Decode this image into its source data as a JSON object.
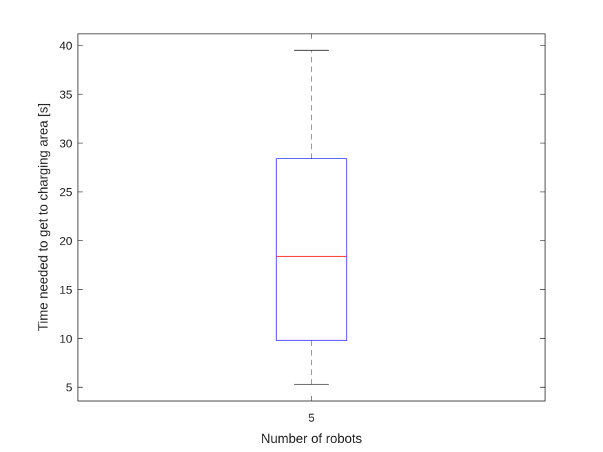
{
  "chart_data": {
    "type": "boxplot",
    "title": "",
    "xlabel": "Number of robots",
    "ylabel": "Time needed to get to charging area [s]",
    "categories": [
      "5"
    ],
    "boxes": [
      {
        "category": "5",
        "whisker_low": 5.3,
        "q1": 9.8,
        "median": 18.4,
        "q3": 28.4,
        "whisker_high": 39.5
      }
    ],
    "ylim": [
      3.6,
      41.2
    ],
    "yticks": [
      5,
      10,
      15,
      20,
      25,
      30,
      35,
      40
    ],
    "grid": false,
    "colors": {
      "box": "#0000ff",
      "median": "#ff0000",
      "whisker": "#000000",
      "axes": "#262626"
    }
  }
}
